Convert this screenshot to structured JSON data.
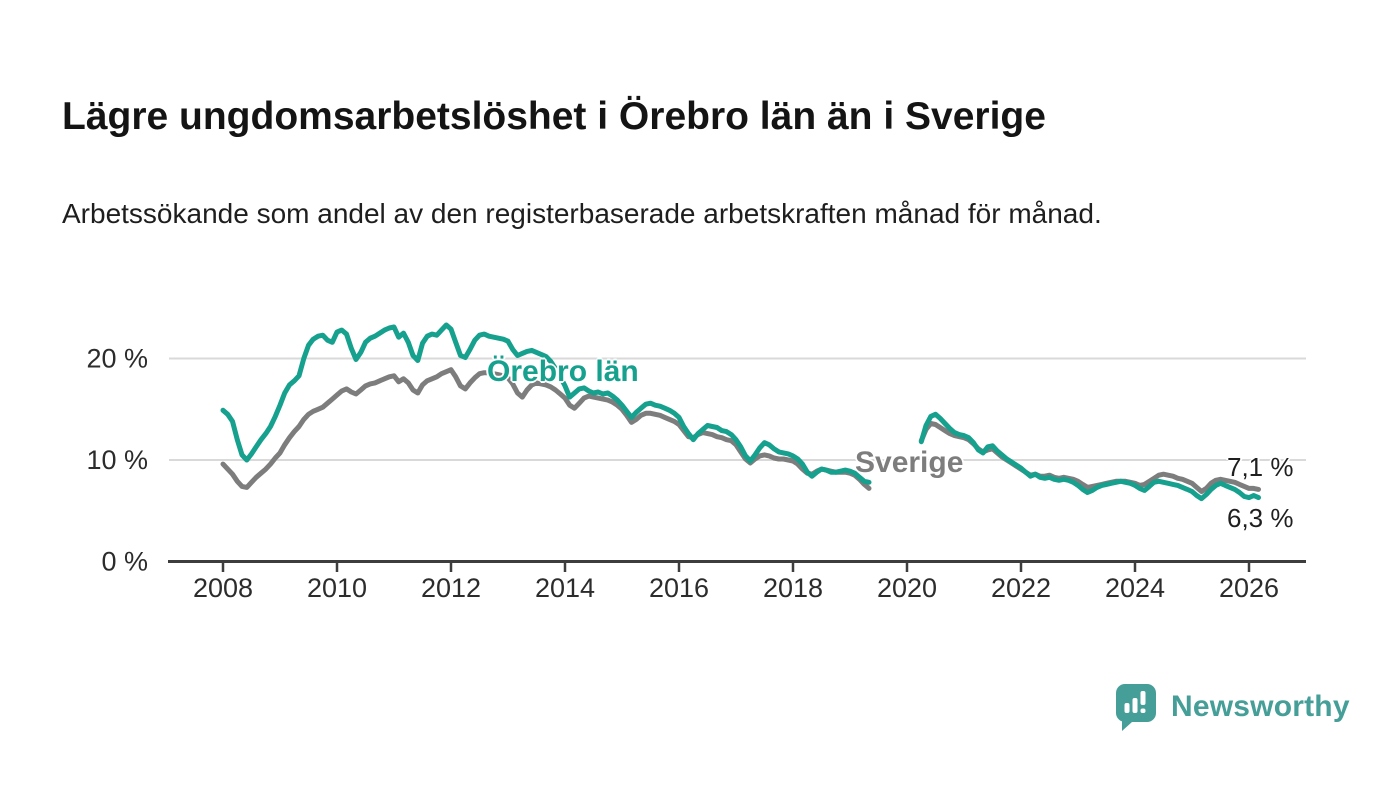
{
  "title": "Lägre ungdomsarbetslöshet i Örebro län än i Sverige",
  "subtitle": "Arbetssökande som andel av den registerbaserade arbetskraften månad för månad.",
  "branding": {
    "logo_text": "Newsworthy",
    "logo_color": "#459e97"
  },
  "chart_data": {
    "type": "line",
    "title": "Lägre ungdomsarbetslöshet i Örebro län än i Sverige",
    "subtitle": "Arbetssökande som andel av den registerbaserade arbetskraften månad för månad.",
    "unit": "%",
    "grid": "horizontal gridlines at 10 % and 20 %",
    "legend_position": "inline series labels on chart",
    "x_axis_range": [
      2007.05,
      2027.0
    ],
    "y_axis_range": [
      0,
      24
    ],
    "x_ticks": [
      {
        "value": 2008,
        "label": "2008"
      },
      {
        "value": 2010,
        "label": "2010"
      },
      {
        "value": 2012,
        "label": "2012"
      },
      {
        "value": 2014,
        "label": "2014"
      },
      {
        "value": 2016,
        "label": "2016"
      },
      {
        "value": 2018,
        "label": "2018"
      },
      {
        "value": 2020,
        "label": "2020"
      },
      {
        "value": 2022,
        "label": "2022"
      },
      {
        "value": 2024,
        "label": "2024"
      },
      {
        "value": 2026,
        "label": "2026"
      }
    ],
    "y_ticks": [
      {
        "value": 0,
        "label": "0 %"
      },
      {
        "value": 10,
        "label": "10 %"
      },
      {
        "value": 20,
        "label": "20 %"
      }
    ],
    "data_gap_note": "both lines are interrupted between mid-2019 and spring 2020",
    "colors": {
      "orebro_lan": "#16a08e",
      "sverige": "#7d7d7d",
      "gridline": "#d9d9d9",
      "axis": "#3d3d3d",
      "tick_text": "#2c2c2c"
    },
    "series": [
      {
        "name": "Örebro län",
        "color": "#16a08e",
        "end_label": "6,3 %",
        "end_value": 6.3,
        "segments": [
          {
            "start_year": 2008,
            "start_month": 1,
            "values": [
              14.9,
              14.5,
              13.8,
              12.0,
              10.5,
              10.0,
              10.6,
              11.3,
              12.0,
              12.6,
              13.3,
              14.3,
              15.4,
              16.6,
              17.4,
              17.8,
              18.3,
              20.0,
              21.3,
              21.9,
              22.2,
              22.3,
              21.8,
              21.6,
              22.6,
              22.8,
              22.4,
              21.0,
              19.9,
              20.6,
              21.6,
              22.0,
              22.2,
              22.5,
              22.8,
              23.0,
              23.1,
              22.1,
              22.5,
              21.6,
              20.3,
              19.8,
              21.5,
              22.2,
              22.4,
              22.3,
              22.8,
              23.3,
              22.9,
              21.6,
              20.3,
              20.1,
              20.9,
              21.8,
              22.3,
              22.4,
              22.2,
              22.1,
              22.0,
              21.9,
              21.7,
              20.9,
              20.3,
              20.5,
              20.7,
              20.8,
              20.6,
              20.4,
              20.2,
              19.7,
              19.0,
              18.2,
              17.3,
              16.2,
              16.6,
              17.0,
              17.1,
              16.8,
              16.6,
              16.7,
              16.5,
              16.6,
              16.3,
              15.9,
              15.4,
              14.8,
              14.2,
              14.7,
              15.1,
              15.5,
              15.6,
              15.4,
              15.3,
              15.1,
              14.9,
              14.6,
              14.2,
              13.3,
              12.6,
              12.0,
              12.6,
              13.0,
              13.4,
              13.3,
              13.2,
              12.9,
              12.8,
              12.5,
              12.0,
              11.3,
              10.4,
              9.9,
              10.5,
              11.2,
              11.7,
              11.5,
              11.1,
              10.8,
              10.7,
              10.6,
              10.4,
              10.1,
              9.6,
              8.8,
              8.4,
              8.8,
              9.1,
              9.0,
              8.8,
              8.8,
              8.9,
              9.0,
              8.9,
              8.7,
              8.3,
              7.9,
              7.8
            ]
          },
          {
            "start_year": 2020,
            "start_month": 4,
            "values": [
              11.8,
              13.4,
              14.3,
              14.5,
              14.1,
              13.6,
              13.1,
              12.7,
              12.5,
              12.4,
              12.2,
              11.7,
              11.0,
              10.7,
              11.3,
              11.4,
              10.9,
              10.5,
              10.1,
              9.8,
              9.5,
              9.2,
              8.8,
              8.4,
              8.6,
              8.3,
              8.2,
              8.3,
              8.1,
              8.0,
              8.1,
              8.0,
              7.8,
              7.5,
              7.1,
              6.8,
              7.0,
              7.3,
              7.5,
              7.6,
              7.7,
              7.8,
              7.9,
              7.8,
              7.7,
              7.5,
              7.2,
              7.0,
              7.4,
              7.8,
              7.9,
              7.8,
              7.7,
              7.6,
              7.5,
              7.3,
              7.1,
              6.9,
              6.5,
              6.2,
              6.6,
              7.1,
              7.5,
              7.7,
              7.5,
              7.3,
              7.1,
              6.8,
              6.4,
              6.3,
              6.5,
              6.3
            ]
          }
        ]
      },
      {
        "name": "Sverige",
        "color": "#7d7d7d",
        "end_label": "7,1 %",
        "end_value": 7.1,
        "segments": [
          {
            "start_year": 2008,
            "start_month": 1,
            "values": [
              9.6,
              9.1,
              8.6,
              7.9,
              7.4,
              7.3,
              7.8,
              8.3,
              8.7,
              9.1,
              9.6,
              10.2,
              10.7,
              11.5,
              12.2,
              12.8,
              13.3,
              14.0,
              14.5,
              14.8,
              15.0,
              15.2,
              15.6,
              16.0,
              16.4,
              16.8,
              17.0,
              16.7,
              16.5,
              16.9,
              17.3,
              17.5,
              17.6,
              17.8,
              18.0,
              18.2,
              18.3,
              17.7,
              18.0,
              17.6,
              16.9,
              16.6,
              17.4,
              17.8,
              18.0,
              18.2,
              18.5,
              18.7,
              18.9,
              18.2,
              17.3,
              17.0,
              17.6,
              18.1,
              18.5,
              18.6,
              18.6,
              18.5,
              18.4,
              18.3,
              18.1,
              17.5,
              16.6,
              16.2,
              16.9,
              17.4,
              17.6,
              17.5,
              17.4,
              17.2,
              16.9,
              16.5,
              16.1,
              15.4,
              15.1,
              15.6,
              16.1,
              16.3,
              16.2,
              16.1,
              16.0,
              15.9,
              15.7,
              15.4,
              15.0,
              14.4,
              13.7,
              14.0,
              14.4,
              14.6,
              14.6,
              14.5,
              14.4,
              14.2,
              14.0,
              13.8,
              13.5,
              12.9,
              12.3,
              12.2,
              12.5,
              12.7,
              12.6,
              12.5,
              12.3,
              12.2,
              12.0,
              11.9,
              11.5,
              10.8,
              10.1,
              9.7,
              10.1,
              10.4,
              10.5,
              10.4,
              10.2,
              10.1,
              10.1,
              10.0,
              9.9,
              9.6,
              9.1,
              8.7,
              8.6,
              8.9,
              9.1,
              9.0,
              8.9,
              8.8,
              8.8,
              8.8,
              8.7,
              8.5,
              8.1,
              7.6,
              7.2
            ]
          },
          {
            "start_year": 2020,
            "start_month": 4,
            "values": [
              11.9,
              13.0,
              13.6,
              13.5,
              13.2,
              12.9,
              12.6,
              12.4,
              12.3,
              12.2,
              12.0,
              11.6,
              11.1,
              10.8,
              11.0,
              11.1,
              10.7,
              10.3,
              10.0,
              9.7,
              9.4,
              9.1,
              8.8,
              8.5,
              8.6,
              8.4,
              8.4,
              8.5,
              8.3,
              8.2,
              8.3,
              8.2,
              8.1,
              7.9,
              7.6,
              7.3,
              7.4,
              7.5,
              7.6,
              7.7,
              7.8,
              7.9,
              7.9,
              7.9,
              7.8,
              7.7,
              7.5,
              7.6,
              7.9,
              8.2,
              8.5,
              8.6,
              8.5,
              8.4,
              8.2,
              8.1,
              7.9,
              7.7,
              7.3,
              6.9,
              7.2,
              7.7,
              8.0,
              8.1,
              8.0,
              7.9,
              7.8,
              7.6,
              7.4,
              7.2,
              7.2,
              7.1
            ]
          }
        ]
      }
    ]
  }
}
